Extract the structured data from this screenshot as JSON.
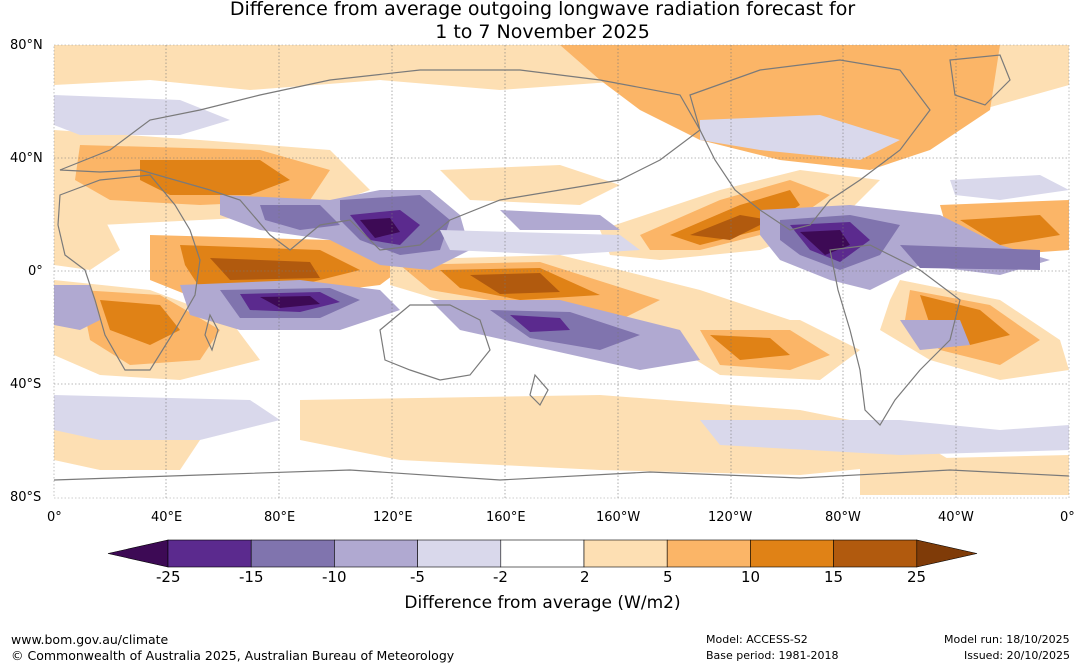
{
  "title": {
    "line1": "Difference from average outgoing longwave radiation forecast for",
    "line2": "1 to 7 November 2025"
  },
  "lat_labels": [
    "80°N",
    "40°N",
    "0°",
    "40°S",
    "80°S"
  ],
  "lon_labels": [
    "0°",
    "40°E",
    "80°E",
    "120°E",
    "160°E",
    "160°W",
    "120°W",
    "80°W",
    "40°W",
    "0°"
  ],
  "colorbar": {
    "title": "Difference from average (W/m2)",
    "ticks": [
      "-25",
      "-15",
      "-10",
      "-5",
      "-2",
      "2",
      "5",
      "10",
      "15",
      "25"
    ],
    "colors": [
      "#3d0a55",
      "#5b2a8e",
      "#8074ae",
      "#b0a9d1",
      "#d9d8eb",
      "#ffffff",
      "#fddfb3",
      "#fbb567",
      "#e08216",
      "#b15a0e",
      "#7f3b08"
    ]
  },
  "footer": {
    "website": "www.bom.gov.au/climate",
    "copyright": "© Commonwealth of Australia 2025, Australian Bureau of Meteorology",
    "model": "Model: ACCESS-S2",
    "base_period": "Base period: 1981-2018",
    "model_run": "Model run: 18/10/2025",
    "issued": "Issued: 20/10/2025"
  }
}
